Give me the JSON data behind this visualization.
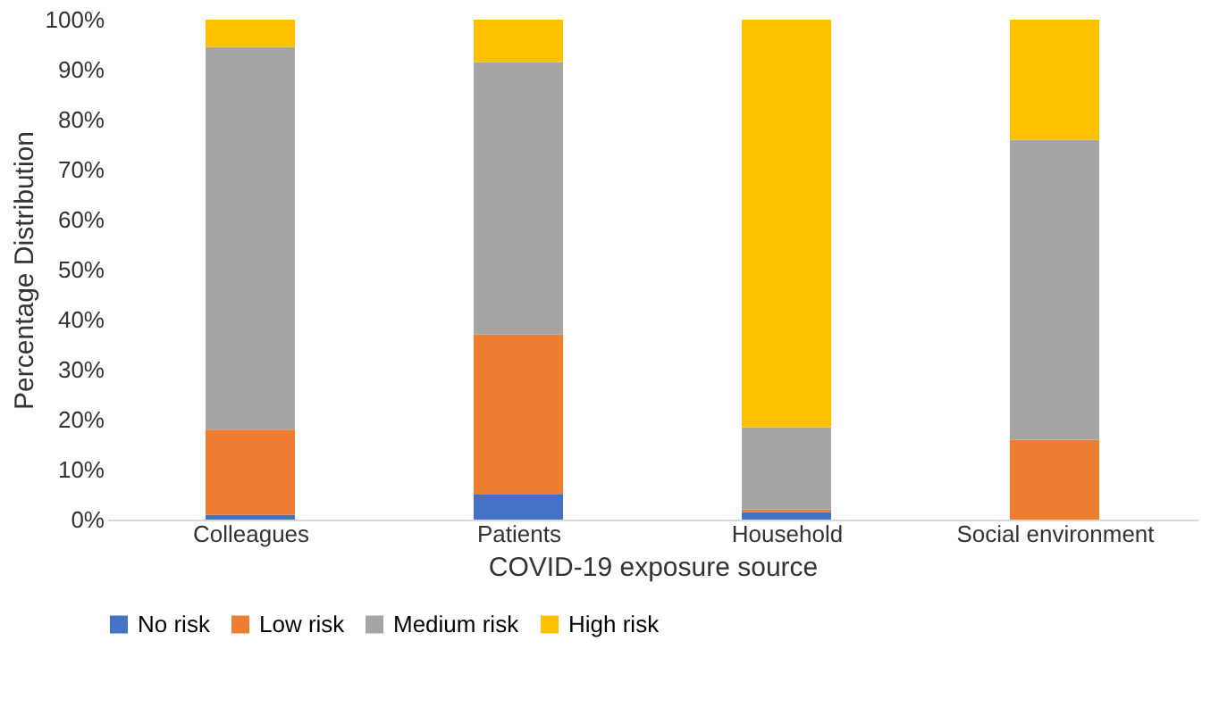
{
  "chart_data": {
    "type": "bar",
    "stacked": true,
    "xlabel": "COVID-19 exposure source",
    "ylabel": "Percentage Distribution",
    "categories": [
      "Colleagues",
      "Patients",
      "Household",
      "Social environment"
    ],
    "series": [
      {
        "name": "No risk",
        "color": "#4472c4",
        "values": [
          1,
          5,
          1.5,
          0
        ]
      },
      {
        "name": "Low risk",
        "color": "#ed7d31",
        "values": [
          17,
          32,
          0.5,
          16
        ]
      },
      {
        "name": "Medium risk",
        "color": "#a5a5a5",
        "values": [
          76.5,
          54.5,
          16.5,
          60
        ]
      },
      {
        "name": "High risk",
        "color": "#ffc000",
        "values": [
          5.5,
          8.5,
          81.5,
          24
        ]
      }
    ],
    "ylim": [
      0,
      100
    ],
    "yticks": [
      {
        "value": 0,
        "label": "0%"
      },
      {
        "value": 10,
        "label": "10%"
      },
      {
        "value": 20,
        "label": "20%"
      },
      {
        "value": 30,
        "label": "30%"
      },
      {
        "value": 40,
        "label": "40%"
      },
      {
        "value": 50,
        "label": "50%"
      },
      {
        "value": 60,
        "label": "60%"
      },
      {
        "value": 70,
        "label": "70%"
      },
      {
        "value": 80,
        "label": "80%"
      },
      {
        "value": 90,
        "label": "90%"
      },
      {
        "value": 100,
        "label": "100%"
      }
    ],
    "grid": false,
    "legend": "bottom"
  }
}
